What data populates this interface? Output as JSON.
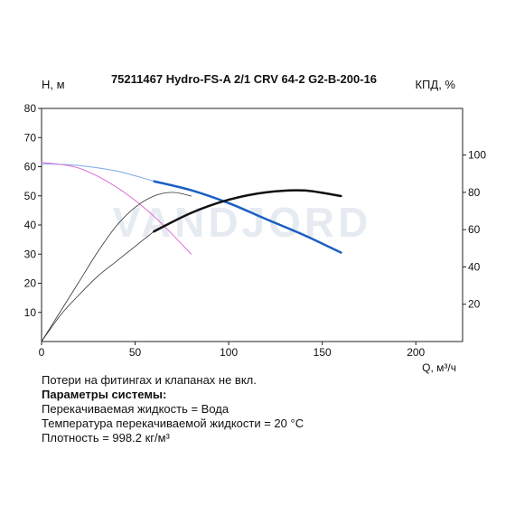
{
  "chart_data": {
    "type": "line",
    "title": "75211467 Hydro-FS-A 2/1 CRV 64-2 G2-B-200-16",
    "ylabel_left": "Н, м",
    "ylabel_right": "КПД, %",
    "xlabel": "Q, м³/ч",
    "watermark": "VANDJORD",
    "xlim": [
      0,
      225
    ],
    "ylim_left": [
      0,
      80
    ],
    "ylim_right": [
      0,
      125
    ],
    "x_ticks": [
      "0",
      "50",
      "100",
      "150",
      "200"
    ],
    "x_tick_values": [
      0,
      50,
      100,
      150,
      200
    ],
    "y_left_ticks": [
      "10",
      "20",
      "30",
      "40",
      "50",
      "60",
      "70",
      "80"
    ],
    "y_left_tick_values": [
      10,
      20,
      30,
      40,
      50,
      60,
      70,
      80
    ],
    "y_right_ticks": [
      "20",
      "40",
      "60",
      "80",
      "100"
    ],
    "y_right_tick_values": [
      20,
      40,
      60,
      80,
      100
    ],
    "series": [
      {
        "axis": "left",
        "color": "#1a5fc4",
        "width": 2.5,
        "x": [
          60,
          80,
          100,
          120,
          140,
          160
        ],
        "y": [
          55,
          51.9,
          47.5,
          42,
          36.6,
          30.5
        ]
      },
      {
        "axis": "left",
        "color": "#7aa7e6",
        "width": 1,
        "x": [
          0,
          20,
          40,
          60
        ],
        "y": [
          61,
          60.4,
          58.5,
          55
        ]
      },
      {
        "axis": "left",
        "color": "#e070d8",
        "width": 1,
        "x": [
          0,
          20,
          40,
          60,
          80
        ],
        "y": [
          61.5,
          59.5,
          53,
          43,
          30
        ]
      },
      {
        "axis": "right",
        "color": "#111111",
        "width": 2.5,
        "x": [
          60,
          80,
          100,
          120,
          140,
          160
        ],
        "y": [
          59,
          69,
          76,
          80,
          81,
          78
        ]
      },
      {
        "axis": "right",
        "color": "#333333",
        "width": 0.8,
        "x": [
          0,
          10,
          20,
          30,
          40,
          50,
          60
        ],
        "y": [
          0,
          14,
          25,
          35,
          43,
          51,
          59
        ]
      },
      {
        "axis": "right",
        "color": "#333333",
        "width": 0.8,
        "x": [
          0,
          10,
          20,
          30,
          40,
          50,
          60,
          70,
          80
        ],
        "y": [
          0,
          16,
          32,
          48,
          62,
          72,
          78,
          80,
          78
        ]
      }
    ]
  },
  "notes": {
    "line1": "Потери на фитингах и клапанах не вкл.",
    "line2": "Параметры системы:",
    "line3": "Перекачиваемая жидкость = Вода",
    "line4": "Температура перекачиваемой жидкости = 20 °C",
    "line5": "Плотность = 998.2 кг/м³"
  }
}
